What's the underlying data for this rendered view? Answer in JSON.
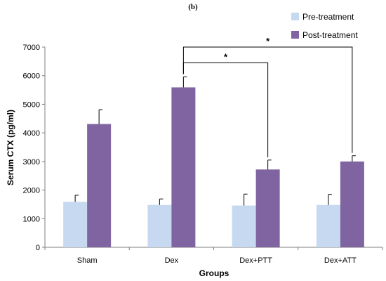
{
  "panel_label": "(b)",
  "colors": {
    "pre": "#c6d9f0",
    "post": "#8064a2",
    "axis": "#7f7f7f",
    "text": "#000000"
  },
  "chart_data": {
    "type": "bar",
    "title": "",
    "xlabel": "Groups",
    "ylabel": "Serum CTX (pg/ml)",
    "ylim": [
      0,
      7000
    ],
    "yticks": [
      0,
      1000,
      2000,
      3000,
      4000,
      5000,
      6000,
      7000
    ],
    "grid": false,
    "legend_position": "top-right",
    "categories": [
      "Sham",
      "Dex",
      "Dex+PTT",
      "Dex+ATT"
    ],
    "series": [
      {
        "name": "Pre-treatment",
        "values": [
          1590,
          1480,
          1460,
          1480
        ],
        "errors": [
          230,
          210,
          400,
          370
        ]
      },
      {
        "name": "Post-treatment",
        "values": [
          4310,
          5590,
          2720,
          3000
        ],
        "errors": [
          500,
          370,
          330,
          200
        ]
      }
    ],
    "significance": [
      {
        "from": "Dex",
        "to": "Dex+PTT",
        "label": "*"
      },
      {
        "from": "Dex",
        "to": "Dex+ATT",
        "label": "*"
      }
    ]
  }
}
